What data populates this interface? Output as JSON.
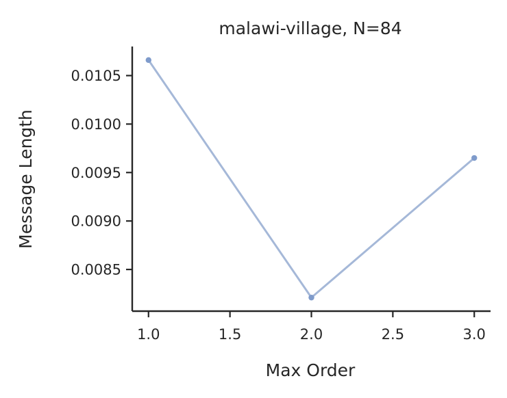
{
  "chart_data": {
    "type": "line",
    "title": "malawi-village, N=84",
    "xlabel": "Max Order",
    "ylabel": "Message Length",
    "xlim": [
      0.9,
      3.1
    ],
    "ylim": [
      0.00807,
      0.0108
    ],
    "x_ticks": [
      1.0,
      1.5,
      2.0,
      2.5,
      3.0
    ],
    "x_tick_labels": [
      "1.0",
      "1.5",
      "2.0",
      "2.5",
      "3.0"
    ],
    "y_ticks": [
      0.0085,
      0.009,
      0.0095,
      0.01,
      0.0105
    ],
    "y_tick_labels": [
      "0.0085",
      "0.0090",
      "0.0095",
      "0.0100",
      "0.0105"
    ],
    "grid": false,
    "series": [
      {
        "x": [
          1.0,
          2.0,
          3.0
        ],
        "values": [
          0.01066,
          0.00821,
          0.00965
        ],
        "color": "#a5b8d8",
        "marker_color": "#7f9bcb"
      }
    ]
  }
}
